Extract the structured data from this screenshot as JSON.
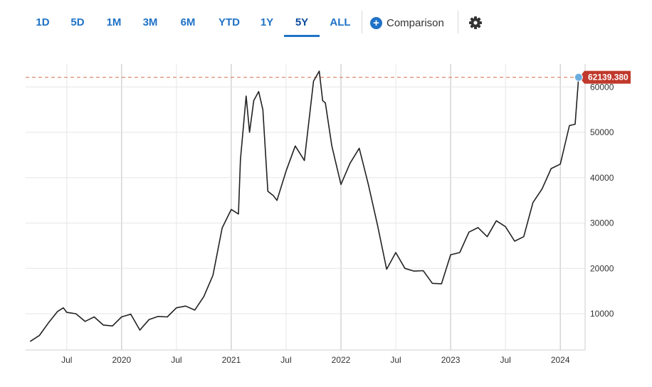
{
  "toolbar": {
    "ranges": [
      "1D",
      "5D",
      "1M",
      "3M",
      "6M",
      "YTD",
      "1Y",
      "5Y",
      "ALL"
    ],
    "active_range": "5Y",
    "comparison_label": "Comparison",
    "plus_icon": "+",
    "settings_icon": "gear-icon"
  },
  "colors": {
    "accent": "#1f72c7",
    "line": "#222222",
    "last_price_line": "#d9805f",
    "last_price_tag": "#c0392b",
    "last_price_marker": "#6aaee0",
    "grid": "#e6e6e6"
  },
  "chart_data": {
    "type": "line",
    "x_tick_labels": [
      "Jul",
      "2020",
      "Jul",
      "2021",
      "Jul",
      "2022",
      "Jul",
      "2023",
      "Jul",
      "2024"
    ],
    "y_tick_labels": [
      "10000",
      "20000",
      "30000",
      "40000",
      "50000",
      "60000"
    ],
    "ylim": [
      2000,
      63500
    ],
    "grid": true,
    "last_price": 62139.38,
    "last_price_label": "62139.380",
    "series": [
      {
        "x": [
          "2019-03",
          "2019-04",
          "2019-05",
          "2019-06",
          "2019-06-20",
          "2019-07",
          "2019-08",
          "2019-09",
          "2019-10",
          "2019-11",
          "2019-12",
          "2020-01",
          "2020-02",
          "2020-03",
          "2020-04",
          "2020-05",
          "2020-06",
          "2020-07",
          "2020-08",
          "2020-09",
          "2020-10",
          "2020-11",
          "2020-12",
          "2021-01",
          "2021-01-25",
          "2021-02",
          "2021-02-20",
          "2021-03",
          "2021-03-15",
          "2021-04",
          "2021-04-15",
          "2021-05",
          "2021-05-20",
          "2021-06",
          "2021-07",
          "2021-08",
          "2021-09",
          "2021-10",
          "2021-10-20",
          "2021-11",
          "2021-11-10",
          "2021-12",
          "2022-01",
          "2022-02",
          "2022-03",
          "2022-04",
          "2022-05",
          "2022-06",
          "2022-07",
          "2022-08",
          "2022-09",
          "2022-10",
          "2022-11",
          "2022-12",
          "2023-01",
          "2023-02",
          "2023-03",
          "2023-04",
          "2023-05",
          "2023-06",
          "2023-07",
          "2023-08",
          "2023-09",
          "2023-10",
          "2023-11",
          "2023-12",
          "2024-01",
          "2024-02",
          "2024-02-20",
          "2024-03"
        ],
        "values": [
          3900,
          5200,
          8000,
          10500,
          11300,
          10300,
          10000,
          8300,
          9300,
          7500,
          7300,
          9300,
          9900,
          6400,
          8700,
          9400,
          9300,
          11300,
          11700,
          10800,
          13800,
          18500,
          28900,
          33000,
          32000,
          44000,
          58000,
          50000,
          57000,
          59000,
          55000,
          37000,
          36000,
          35000,
          41500,
          47000,
          43800,
          61300,
          63500,
          57000,
          56500,
          47000,
          38500,
          43200,
          46500,
          38500,
          29500,
          19800,
          23500,
          20000,
          19400,
          19500,
          16700,
          16600,
          23000,
          23500,
          28000,
          29000,
          27000,
          30500,
          29200,
          26000,
          27000,
          34500,
          37500,
          42000,
          43000,
          51500,
          51800,
          62139
        ]
      }
    ]
  }
}
